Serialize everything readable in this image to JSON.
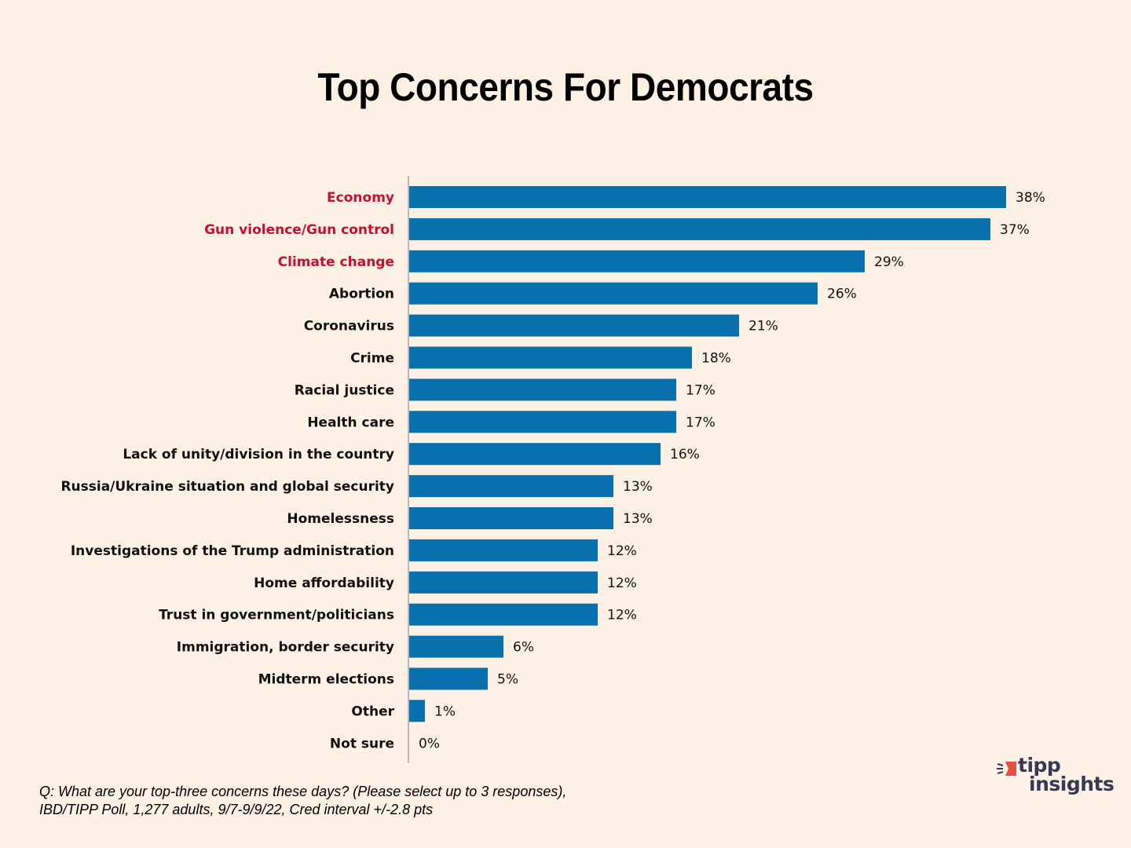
{
  "chart_data": {
    "type": "bar",
    "orientation": "horizontal",
    "title": "Top Concerns For Democrats",
    "xlabel": "",
    "ylabel": "",
    "xlim": [
      0,
      38
    ],
    "grid": false,
    "value_suffix": "%",
    "bar_color": "#0871ad",
    "highlight_label_color": "#c8102e",
    "default_label_color": "#111111",
    "categories": [
      "Economy",
      "Gun violence/Gun control",
      "Climate change",
      "Abortion",
      "Coronavirus",
      "Crime",
      "Racial justice",
      "Health care",
      "Lack of unity/division in the country",
      "Russia/Ukraine situation and global security",
      "Homelessness",
      "Investigations of the Trump administration",
      "Home affordability",
      "Trust in government/politicians",
      "Immigration, border security",
      "Midterm elections",
      "Other",
      "Not sure"
    ],
    "values": [
      38,
      37,
      29,
      26,
      21,
      18,
      17,
      17,
      16,
      13,
      13,
      12,
      12,
      12,
      6,
      5,
      1,
      0
    ],
    "highlighted": [
      true,
      true,
      true,
      false,
      false,
      false,
      false,
      false,
      false,
      false,
      false,
      false,
      false,
      false,
      false,
      false,
      false,
      false
    ]
  },
  "footnote": {
    "line1": "Q: What are your top-three concerns these days? (Please select up to 3 responses),",
    "line2": "IBD/TIPP Poll, 1,277 adults, 9/7-9/9/22, Cred interval +/-2.8 pts"
  },
  "logo": {
    "line1": "tipp",
    "line2": "insights",
    "accent_color": "#e2504a",
    "text_color": "#343a55"
  }
}
